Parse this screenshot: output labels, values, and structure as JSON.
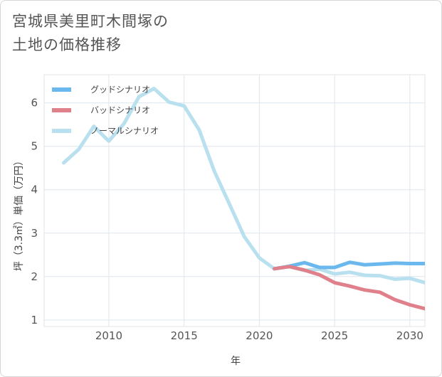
{
  "title": {
    "line1": "宮城県美里町木間塚の",
    "line2": "土地の価格推移"
  },
  "chart_data": {
    "type": "line",
    "xlabel": "年",
    "ylabel": "坪（3.3㎡）単価（万円）",
    "xlim": [
      2005.7,
      2031.0
    ],
    "ylim": [
      0.85,
      6.65
    ],
    "xticks": [
      2010,
      2015,
      2020,
      2025,
      2030
    ],
    "yticks": [
      1,
      2,
      3,
      4,
      5,
      6
    ],
    "grid": true,
    "legend_position": "top-left",
    "series": [
      {
        "name": "グッドシナリオ",
        "color": "#6bb8ee",
        "x": [
          2021,
          2022,
          2023,
          2024,
          2025,
          2026,
          2027,
          2028,
          2029,
          2030,
          2031
        ],
        "values": [
          2.18,
          2.24,
          2.32,
          2.21,
          2.21,
          2.33,
          2.27,
          2.29,
          2.31,
          2.3,
          2.3
        ]
      },
      {
        "name": "バッドシナリオ",
        "color": "#e0808b",
        "x": [
          2021,
          2022,
          2023,
          2024,
          2025,
          2026,
          2027,
          2028,
          2029,
          2030,
          2031
        ],
        "values": [
          2.18,
          2.23,
          2.15,
          2.04,
          1.86,
          1.78,
          1.69,
          1.64,
          1.47,
          1.35,
          1.26
        ]
      },
      {
        "name": "ノーマルシナリオ",
        "color": "#b9e0ee",
        "x": [
          2007,
          2008,
          2009,
          2010,
          2011,
          2012,
          2013,
          2014,
          2015,
          2016,
          2017,
          2018,
          2019,
          2020,
          2021,
          2022,
          2023,
          2024,
          2025,
          2026,
          2027,
          2028,
          2029,
          2030,
          2031
        ],
        "values": [
          4.62,
          4.93,
          5.46,
          5.12,
          5.52,
          6.14,
          6.33,
          6.02,
          5.93,
          5.38,
          4.43,
          3.68,
          2.92,
          2.43,
          2.18,
          2.23,
          2.14,
          2.17,
          2.06,
          2.1,
          2.03,
          2.02,
          1.94,
          1.96,
          1.86
        ]
      }
    ]
  }
}
